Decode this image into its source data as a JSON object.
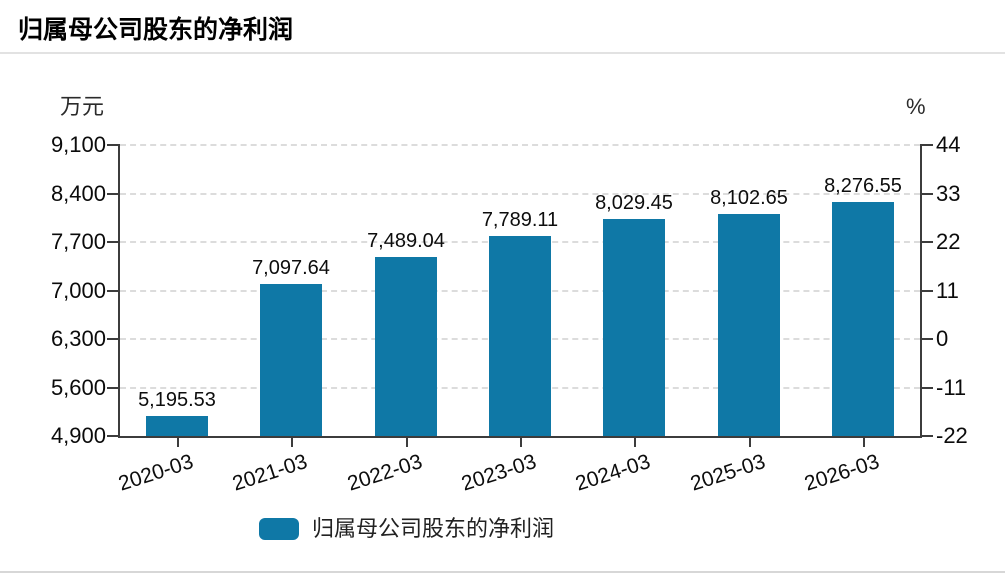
{
  "header": {
    "title": "归属母公司股东的净利润"
  },
  "chart_data": {
    "type": "bar",
    "title": "归属母公司股东的净利润",
    "categories": [
      "2020-03",
      "2021-03",
      "2022-03",
      "2023-03",
      "2024-03",
      "2025-03",
      "2026-03"
    ],
    "values": [
      5195.53,
      7097.64,
      7489.04,
      7789.11,
      8029.45,
      8102.65,
      8276.55
    ],
    "value_labels": [
      "5,195.53",
      "7,097.64",
      "7,489.04",
      "7,789.11",
      "8,029.45",
      "8,102.65",
      "8,276.55"
    ],
    "bar_color": "#0f78a6",
    "grid": true,
    "left_axis": {
      "title": "万元",
      "tick_labels": [
        "9,100",
        "8,400",
        "7,700",
        "7,000",
        "6,300",
        "5,600",
        "4,900"
      ],
      "min": 4900,
      "max": 9100
    },
    "right_axis": {
      "title": "%",
      "tick_labels": [
        "44",
        "33",
        "22",
        "11",
        "0",
        "-11",
        "-22"
      ],
      "min": -22,
      "max": 44
    },
    "legend": [
      {
        "label": "归属母公司股东的净利润",
        "color": "#0f78a6"
      }
    ],
    "legend_position": "bottom"
  }
}
